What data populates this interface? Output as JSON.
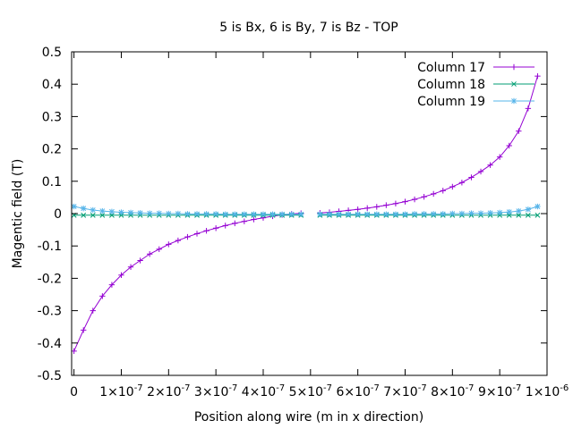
{
  "chart_data": {
    "type": "line",
    "title": "5 is Bx, 6 is By, 7 is Bz - TOP",
    "xlabel": "Position along wire (m in x direction)",
    "ylabel": "Magentic field (T)",
    "xlim": [
      -5e-09,
      1e-06
    ],
    "ylim": [
      -0.5,
      0.5
    ],
    "grid": false,
    "legend_position": "top-right",
    "yticks": [
      {
        "value": -0.5,
        "label": "-0.5"
      },
      {
        "value": -0.4,
        "label": "-0.4"
      },
      {
        "value": -0.3,
        "label": "-0.3"
      },
      {
        "value": -0.2,
        "label": "-0.2"
      },
      {
        "value": -0.1,
        "label": "-0.1"
      },
      {
        "value": 0,
        "label": "0"
      },
      {
        "value": 0.1,
        "label": "0.1"
      },
      {
        "value": 0.2,
        "label": "0.2"
      },
      {
        "value": 0.3,
        "label": "0.3"
      },
      {
        "value": 0.4,
        "label": "0.4"
      },
      {
        "value": 0.5,
        "label": "0.5"
      }
    ],
    "xticks": [
      {
        "value": 0,
        "base": "0",
        "exp": ""
      },
      {
        "value": 1e-07,
        "base": "1×10",
        "exp": "-7"
      },
      {
        "value": 2e-07,
        "base": "2×10",
        "exp": "-7"
      },
      {
        "value": 3e-07,
        "base": "3×10",
        "exp": "-7"
      },
      {
        "value": 4e-07,
        "base": "4×10",
        "exp": "-7"
      },
      {
        "value": 5e-07,
        "base": "5×10",
        "exp": "-7"
      },
      {
        "value": 6e-07,
        "base": "6×10",
        "exp": "-7"
      },
      {
        "value": 7e-07,
        "base": "7×10",
        "exp": "-7"
      },
      {
        "value": 8e-07,
        "base": "8×10",
        "exp": "-7"
      },
      {
        "value": 9e-07,
        "base": "9×10",
        "exp": "-7"
      },
      {
        "value": 1e-06,
        "base": "1×10",
        "exp": "-6"
      }
    ],
    "gap": [
      4.9e-07,
      5.1e-07
    ],
    "series": [
      {
        "name": "Column 17",
        "color": "#9400d3",
        "marker": "plus",
        "x": [
          0.0,
          2e-08,
          4e-08,
          6e-08,
          8e-08,
          1e-07,
          1.2e-07,
          1.4e-07,
          1.6e-07,
          1.8e-07,
          2e-07,
          2.2e-07,
          2.4e-07,
          2.6e-07,
          2.8e-07,
          3e-07,
          3.2e-07,
          3.4e-07,
          3.6e-07,
          3.8e-07,
          4e-07,
          4.2e-07,
          4.4e-07,
          4.6e-07,
          4.8e-07,
          5.2e-07,
          5.4e-07,
          5.6e-07,
          5.8e-07,
          6e-07,
          6.2e-07,
          6.4e-07,
          6.6e-07,
          6.8e-07,
          7e-07,
          7.2e-07,
          7.4e-07,
          7.6e-07,
          7.8e-07,
          8e-07,
          8.2e-07,
          8.4e-07,
          8.6e-07,
          8.8e-07,
          9e-07,
          9.2e-07,
          9.4e-07,
          9.6e-07,
          9.8e-07
        ],
        "y": [
          -0.425,
          -0.36,
          -0.3,
          -0.255,
          -0.22,
          -0.19,
          -0.165,
          -0.145,
          -0.125,
          -0.11,
          -0.095,
          -0.083,
          -0.072,
          -0.062,
          -0.053,
          -0.045,
          -0.037,
          -0.03,
          -0.024,
          -0.018,
          -0.013,
          -0.008,
          -0.004,
          -0.001,
          0.001,
          0.002,
          0.004,
          0.007,
          0.01,
          0.013,
          0.017,
          0.021,
          0.026,
          0.031,
          0.037,
          0.044,
          0.052,
          0.061,
          0.071,
          0.083,
          0.096,
          0.112,
          0.13,
          0.15,
          0.175,
          0.21,
          0.255,
          0.325,
          0.425
        ]
      },
      {
        "name": "Column 18",
        "color": "#009e73",
        "marker": "cross",
        "x": [
          0.0,
          2e-08,
          4e-08,
          6e-08,
          8e-08,
          1e-07,
          1.2e-07,
          1.4e-07,
          1.6e-07,
          1.8e-07,
          2e-07,
          2.2e-07,
          2.4e-07,
          2.6e-07,
          2.8e-07,
          3e-07,
          3.2e-07,
          3.4e-07,
          3.6e-07,
          3.8e-07,
          4e-07,
          4.2e-07,
          4.4e-07,
          4.6e-07,
          4.8e-07,
          5.2e-07,
          5.4e-07,
          5.6e-07,
          5.8e-07,
          6e-07,
          6.2e-07,
          6.4e-07,
          6.6e-07,
          6.8e-07,
          7e-07,
          7.2e-07,
          7.4e-07,
          7.6e-07,
          7.8e-07,
          8e-07,
          8.2e-07,
          8.4e-07,
          8.6e-07,
          8.8e-07,
          9e-07,
          9.2e-07,
          9.4e-07,
          9.6e-07,
          9.8e-07
        ],
        "y": [
          -0.005,
          -0.005,
          -0.005,
          -0.005,
          -0.005,
          -0.005,
          -0.005,
          -0.005,
          -0.005,
          -0.005,
          -0.005,
          -0.005,
          -0.005,
          -0.005,
          -0.005,
          -0.005,
          -0.005,
          -0.005,
          -0.005,
          -0.005,
          -0.005,
          -0.005,
          -0.005,
          -0.005,
          -0.005,
          -0.005,
          -0.005,
          -0.005,
          -0.005,
          -0.005,
          -0.005,
          -0.005,
          -0.005,
          -0.005,
          -0.005,
          -0.005,
          -0.005,
          -0.005,
          -0.005,
          -0.005,
          -0.005,
          -0.005,
          -0.005,
          -0.005,
          -0.005,
          -0.005,
          -0.005,
          -0.005,
          -0.005
        ]
      },
      {
        "name": "Column 19",
        "color": "#56b4e9",
        "marker": "star",
        "x": [
          0.0,
          2e-08,
          4e-08,
          6e-08,
          8e-08,
          1e-07,
          1.2e-07,
          1.4e-07,
          1.6e-07,
          1.8e-07,
          2e-07,
          2.2e-07,
          2.4e-07,
          2.6e-07,
          2.8e-07,
          3e-07,
          3.2e-07,
          3.4e-07,
          3.6e-07,
          3.8e-07,
          4e-07,
          4.2e-07,
          4.4e-07,
          4.6e-07,
          4.8e-07,
          5.2e-07,
          5.4e-07,
          5.6e-07,
          5.8e-07,
          6e-07,
          6.2e-07,
          6.4e-07,
          6.6e-07,
          6.8e-07,
          7e-07,
          7.2e-07,
          7.4e-07,
          7.6e-07,
          7.8e-07,
          8e-07,
          8.2e-07,
          8.4e-07,
          8.6e-07,
          8.8e-07,
          9e-07,
          9.2e-07,
          9.4e-07,
          9.6e-07,
          9.8e-07
        ],
        "y": [
          0.022,
          0.016,
          0.011,
          0.008,
          0.006,
          0.004,
          0.003,
          0.002,
          0.001,
          0.001,
          0.0,
          0.0,
          -0.001,
          -0.001,
          -0.001,
          -0.001,
          -0.002,
          -0.002,
          -0.002,
          -0.002,
          -0.002,
          -0.002,
          -0.002,
          -0.002,
          -0.002,
          -0.002,
          -0.002,
          -0.002,
          -0.002,
          -0.002,
          -0.002,
          -0.002,
          -0.002,
          -0.002,
          -0.002,
          -0.001,
          -0.001,
          -0.001,
          -0.001,
          0.0,
          0.0,
          0.001,
          0.001,
          0.002,
          0.003,
          0.005,
          0.008,
          0.013,
          0.022
        ]
      }
    ]
  }
}
